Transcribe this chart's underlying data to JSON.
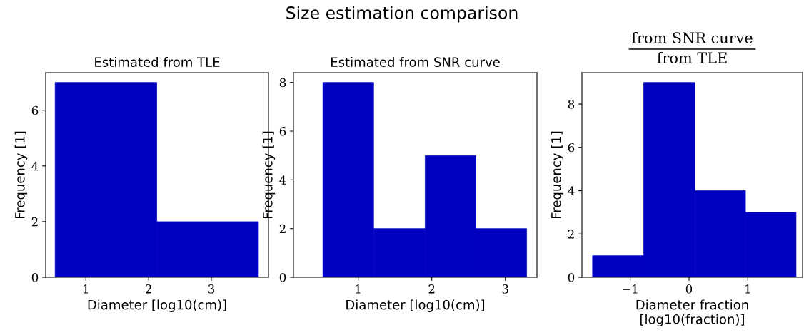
{
  "chart_data": [
    {
      "type": "histogram",
      "title": "Estimated from TLE",
      "annotations": [
        "Size estimation comparison"
      ],
      "xlabel": "Diameter [log10(cm)]",
      "ylabel": "Frequency [1]",
      "bins": [
        0.51,
        2.13,
        3.75
      ],
      "values": [
        7,
        2
      ],
      "color": "#0000c0",
      "xlim": [
        0.36,
        3.91
      ],
      "xticks": [
        1,
        2,
        3
      ],
      "ylim": [
        0,
        7.35
      ],
      "yticks": [
        0,
        2,
        4,
        6
      ],
      "grid": false
    },
    {
      "type": "histogram",
      "title": "Estimated from SNR curve",
      "xlabel": "Diameter [log10(cm)]",
      "ylabel": "Frequency [1]",
      "bins": [
        0.52,
        1.21,
        1.91,
        2.6,
        3.29
      ],
      "values": [
        8,
        2,
        5,
        2
      ],
      "color": "#0000c0",
      "xlim": [
        0.12,
        3.43
      ],
      "xticks": [
        1,
        2,
        3
      ],
      "ylim": [
        0,
        8.4
      ],
      "yticks": [
        0,
        2,
        4,
        6,
        8
      ],
      "grid": false
    },
    {
      "type": "histogram",
      "title": "from SNR curve\nfrom TLE",
      "xlabel": "Diameter fraction\n[log10(fraction)]",
      "ylabel": "Frequency [1]",
      "bins": [
        -1.64,
        -0.77,
        0.1,
        0.96,
        1.82
      ],
      "values": [
        1,
        9,
        4,
        3
      ],
      "color": "#0000c0",
      "xlim": [
        -1.82,
        1.93
      ],
      "xticks": [
        {
          "value": -1,
          "label": "−1"
        },
        0,
        1
      ],
      "ylim": [
        0,
        9.45
      ],
      "yticks": [
        0,
        2,
        4,
        6,
        8
      ],
      "grid": false
    }
  ]
}
